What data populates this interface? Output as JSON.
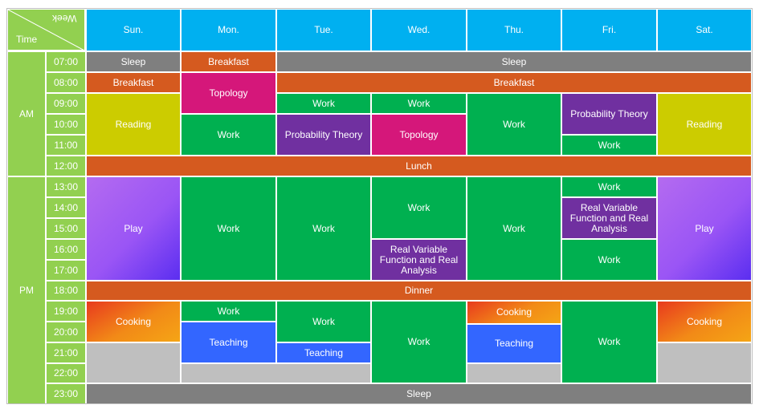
{
  "corner": {
    "week_label": "Week",
    "time_label": "Time"
  },
  "days": [
    "Sun.",
    "Mon.",
    "Tue.",
    "Wed.",
    "Thu.",
    "Fri.",
    "Sat."
  ],
  "periods": [
    "AM",
    "PM"
  ],
  "times": [
    "07:00",
    "08:00",
    "09:00",
    "10:00",
    "11:00",
    "12:00",
    "13:00",
    "14:00",
    "15:00",
    "16:00",
    "17:00",
    "18:00",
    "19:00",
    "20:00",
    "21:00",
    "22:00",
    "23:00"
  ],
  "colors": {
    "header": "#00b0f0",
    "side": "#92d050",
    "sleep": "#7f7f7f",
    "meal": "#d55a1f",
    "work": "#00b050",
    "reading": "#cccc00",
    "topology": "#d5177a",
    "probability": "#7030a0",
    "teaching": "#3366ff",
    "free": "#bfbfbf"
  },
  "events": [
    {
      "id": "sun-sleep",
      "label": "Sleep",
      "day": "Sun.",
      "start": "07:00",
      "end": "08:00",
      "color": "sleep"
    },
    {
      "id": "mon-breakfast",
      "label": "Breakfast",
      "day": "Mon.",
      "start": "07:00",
      "end": "08:00",
      "color": "meal"
    },
    {
      "id": "tue-sat-sleep",
      "label": "Sleep",
      "day": "Tue.-Sat.",
      "start": "07:00",
      "end": "08:00",
      "color": "sleep"
    },
    {
      "id": "sun-breakfast",
      "label": "Breakfast",
      "day": "Sun.",
      "start": "08:00",
      "end": "09:00",
      "color": "meal"
    },
    {
      "id": "mon-topology",
      "label": "Topology",
      "day": "Mon.",
      "start": "08:00",
      "end": "10:00",
      "color": "topology"
    },
    {
      "id": "tue-sat-breakfast",
      "label": "Breakfast",
      "day": "Tue.-Sat.",
      "start": "08:00",
      "end": "09:00",
      "color": "meal"
    },
    {
      "id": "sun-reading",
      "label": "Reading",
      "day": "Sun.",
      "start": "09:00",
      "end": "12:00",
      "color": "reading"
    },
    {
      "id": "mon-work-am",
      "label": "Work",
      "day": "Mon.",
      "start": "10:00",
      "end": "12:00",
      "color": "work"
    },
    {
      "id": "tue-work-am",
      "label": "Work",
      "day": "Tue.",
      "start": "09:00",
      "end": "10:00",
      "color": "work"
    },
    {
      "id": "tue-probability",
      "label": "Probability Theory",
      "day": "Tue.",
      "start": "10:00",
      "end": "12:00",
      "color": "probability"
    },
    {
      "id": "wed-work-am",
      "label": "Work",
      "day": "Wed.",
      "start": "09:00",
      "end": "10:00",
      "color": "work"
    },
    {
      "id": "wed-topology",
      "label": "Topology",
      "day": "Wed.",
      "start": "10:00",
      "end": "12:00",
      "color": "topology"
    },
    {
      "id": "thu-work-am",
      "label": "Work",
      "day": "Thu.",
      "start": "09:00",
      "end": "12:00",
      "color": "work"
    },
    {
      "id": "fri-probability",
      "label": "Probability Theory",
      "day": "Fri.",
      "start": "09:00",
      "end": "11:00",
      "color": "probability"
    },
    {
      "id": "fri-work-am",
      "label": "Work",
      "day": "Fri.",
      "start": "11:00",
      "end": "12:00",
      "color": "work"
    },
    {
      "id": "sat-reading",
      "label": "Reading",
      "day": "Sat.",
      "start": "09:00",
      "end": "12:00",
      "color": "reading"
    },
    {
      "id": "lunch",
      "label": "Lunch",
      "day": "Sun.-Sat.",
      "start": "12:00",
      "end": "13:00",
      "color": "meal"
    },
    {
      "id": "sun-play",
      "label": "Play",
      "day": "Sun.",
      "start": "13:00",
      "end": "18:00",
      "color": "play"
    },
    {
      "id": "mon-work-pm",
      "label": "Work",
      "day": "Mon.",
      "start": "13:00",
      "end": "18:00",
      "color": "work"
    },
    {
      "id": "tue-work-pm",
      "label": "Work",
      "day": "Tue.",
      "start": "13:00",
      "end": "18:00",
      "color": "work"
    },
    {
      "id": "wed-work-pm",
      "label": "Work",
      "day": "Wed.",
      "start": "13:00",
      "end": "16:00",
      "color": "work"
    },
    {
      "id": "wed-realvar",
      "label": "Real Variable Function and Real Analysis",
      "day": "Wed.",
      "start": "16:00",
      "end": "18:00",
      "color": "probability"
    },
    {
      "id": "thu-work-pm",
      "label": "Work",
      "day": "Thu.",
      "start": "13:00",
      "end": "18:00",
      "color": "work"
    },
    {
      "id": "fri-work-pm1",
      "label": "Work",
      "day": "Fri.",
      "start": "13:00",
      "end": "14:00",
      "color": "work"
    },
    {
      "id": "fri-realvar",
      "label": "Real Variable Function and Real Analysis",
      "day": "Fri.",
      "start": "14:00",
      "end": "16:00",
      "color": "probability"
    },
    {
      "id": "fri-work-pm2",
      "label": "Work",
      "day": "Fri.",
      "start": "16:00",
      "end": "18:00",
      "color": "work"
    },
    {
      "id": "sat-play",
      "label": "Play",
      "day": "Sat.",
      "start": "13:00",
      "end": "18:00",
      "color": "play"
    },
    {
      "id": "dinner",
      "label": "Dinner",
      "day": "Sun.-Sat.",
      "start": "18:00",
      "end": "19:00",
      "color": "meal"
    },
    {
      "id": "sun-cooking",
      "label": "Cooking",
      "day": "Sun.",
      "start": "19:00",
      "end": "21:00",
      "color": "cook"
    },
    {
      "id": "sun-free",
      "label": "",
      "day": "Sun.",
      "start": "21:00",
      "end": "23:00",
      "color": "free"
    },
    {
      "id": "mon-work-eve",
      "label": "Work",
      "day": "Mon.",
      "start": "19:00",
      "end": "20:00",
      "color": "work"
    },
    {
      "id": "mon-teaching",
      "label": "Teaching",
      "day": "Mon.",
      "start": "20:00",
      "end": "22:00",
      "color": "teaching"
    },
    {
      "id": "tue-work-eve",
      "label": "Work",
      "day": "Tue.",
      "start": "19:00",
      "end": "21:00",
      "color": "work"
    },
    {
      "id": "tue-teaching",
      "label": "Teaching",
      "day": "Tue.",
      "start": "21:00",
      "end": "22:00",
      "color": "teaching"
    },
    {
      "id": "montue-free",
      "label": "",
      "day": "Mon.-Tue.",
      "start": "22:00",
      "end": "23:00",
      "color": "free"
    },
    {
      "id": "wed-work-eve",
      "label": "Work",
      "day": "Wed.",
      "start": "19:00",
      "end": "23:00",
      "color": "work"
    },
    {
      "id": "thu-cooking",
      "label": "Cooking",
      "day": "Thu.",
      "start": "19:00",
      "end": "20:00",
      "color": "cook"
    },
    {
      "id": "thu-teaching",
      "label": "Teaching",
      "day": "Thu.",
      "start": "20:00",
      "end": "22:00",
      "color": "teaching"
    },
    {
      "id": "thu-free",
      "label": "",
      "day": "Thu.",
      "start": "22:00",
      "end": "23:00",
      "color": "free"
    },
    {
      "id": "fri-work-eve",
      "label": "Work",
      "day": "Fri.",
      "start": "19:00",
      "end": "23:00",
      "color": "work"
    },
    {
      "id": "sat-cooking",
      "label": "Cooking",
      "day": "Sat.",
      "start": "19:00",
      "end": "21:00",
      "color": "cook"
    },
    {
      "id": "sat-free",
      "label": "",
      "day": "Sat.",
      "start": "21:00",
      "end": "23:00",
      "color": "free"
    },
    {
      "id": "night-sleep",
      "label": "Sleep",
      "day": "Sun.-Sat.",
      "start": "23:00",
      "end": "24:00",
      "color": "sleep"
    }
  ]
}
